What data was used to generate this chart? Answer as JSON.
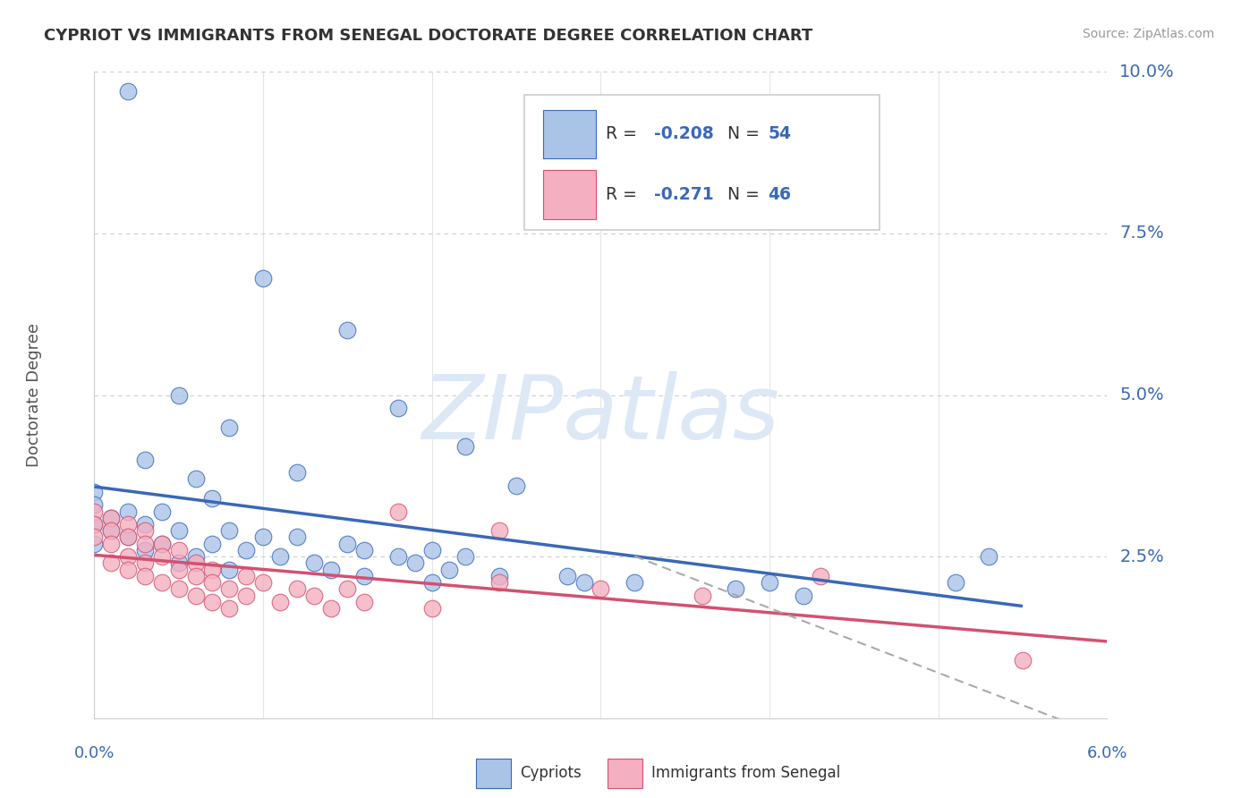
{
  "title": "CYPRIOT VS IMMIGRANTS FROM SENEGAL DOCTORATE DEGREE CORRELATION CHART",
  "source": "Source: ZipAtlas.com",
  "ylabel_label": "Doctorate Degree",
  "r_blue": -0.208,
  "n_blue": 54,
  "r_pink": -0.271,
  "n_pink": 46,
  "blue_color": "#aac4e8",
  "pink_color": "#f4afc0",
  "trend_blue_color": "#3a68b8",
  "trend_pink_color": "#d45070",
  "trend_dash_color": "#aaaaaa",
  "blue_scatter": [
    [
      0.002,
      0.097
    ],
    [
      0.01,
      0.068
    ],
    [
      0.015,
      0.06
    ],
    [
      0.005,
      0.05
    ],
    [
      0.018,
      0.048
    ],
    [
      0.008,
      0.045
    ],
    [
      0.022,
      0.042
    ],
    [
      0.003,
      0.04
    ],
    [
      0.012,
      0.038
    ],
    [
      0.006,
      0.037
    ],
    [
      0.025,
      0.036
    ],
    [
      0.0,
      0.035
    ],
    [
      0.007,
      0.034
    ],
    [
      0.0,
      0.033
    ],
    [
      0.004,
      0.032
    ],
    [
      0.002,
      0.032
    ],
    [
      0.001,
      0.031
    ],
    [
      0.0,
      0.03
    ],
    [
      0.003,
      0.03
    ],
    [
      0.001,
      0.029
    ],
    [
      0.005,
      0.029
    ],
    [
      0.008,
      0.029
    ],
    [
      0.002,
      0.028
    ],
    [
      0.01,
      0.028
    ],
    [
      0.012,
      0.028
    ],
    [
      0.0,
      0.027
    ],
    [
      0.004,
      0.027
    ],
    [
      0.007,
      0.027
    ],
    [
      0.015,
      0.027
    ],
    [
      0.003,
      0.026
    ],
    [
      0.009,
      0.026
    ],
    [
      0.016,
      0.026
    ],
    [
      0.02,
      0.026
    ],
    [
      0.006,
      0.025
    ],
    [
      0.011,
      0.025
    ],
    [
      0.018,
      0.025
    ],
    [
      0.022,
      0.025
    ],
    [
      0.005,
      0.024
    ],
    [
      0.013,
      0.024
    ],
    [
      0.019,
      0.024
    ],
    [
      0.008,
      0.023
    ],
    [
      0.014,
      0.023
    ],
    [
      0.021,
      0.023
    ],
    [
      0.016,
      0.022
    ],
    [
      0.024,
      0.022
    ],
    [
      0.028,
      0.022
    ],
    [
      0.02,
      0.021
    ],
    [
      0.029,
      0.021
    ],
    [
      0.032,
      0.021
    ],
    [
      0.038,
      0.02
    ],
    [
      0.04,
      0.021
    ],
    [
      0.051,
      0.021
    ],
    [
      0.042,
      0.019
    ],
    [
      0.053,
      0.025
    ]
  ],
  "pink_scatter": [
    [
      0.0,
      0.032
    ],
    [
      0.001,
      0.031
    ],
    [
      0.0,
      0.03
    ],
    [
      0.002,
      0.03
    ],
    [
      0.001,
      0.029
    ],
    [
      0.003,
      0.029
    ],
    [
      0.0,
      0.028
    ],
    [
      0.002,
      0.028
    ],
    [
      0.004,
      0.027
    ],
    [
      0.001,
      0.027
    ],
    [
      0.003,
      0.027
    ],
    [
      0.005,
      0.026
    ],
    [
      0.002,
      0.025
    ],
    [
      0.004,
      0.025
    ],
    [
      0.001,
      0.024
    ],
    [
      0.003,
      0.024
    ],
    [
      0.006,
      0.024
    ],
    [
      0.002,
      0.023
    ],
    [
      0.005,
      0.023
    ],
    [
      0.007,
      0.023
    ],
    [
      0.003,
      0.022
    ],
    [
      0.006,
      0.022
    ],
    [
      0.009,
      0.022
    ],
    [
      0.004,
      0.021
    ],
    [
      0.007,
      0.021
    ],
    [
      0.01,
      0.021
    ],
    [
      0.005,
      0.02
    ],
    [
      0.008,
      0.02
    ],
    [
      0.012,
      0.02
    ],
    [
      0.015,
      0.02
    ],
    [
      0.006,
      0.019
    ],
    [
      0.009,
      0.019
    ],
    [
      0.013,
      0.019
    ],
    [
      0.007,
      0.018
    ],
    [
      0.011,
      0.018
    ],
    [
      0.016,
      0.018
    ],
    [
      0.008,
      0.017
    ],
    [
      0.014,
      0.017
    ],
    [
      0.02,
      0.017
    ],
    [
      0.018,
      0.032
    ],
    [
      0.024,
      0.029
    ],
    [
      0.024,
      0.021
    ],
    [
      0.03,
      0.02
    ],
    [
      0.036,
      0.019
    ],
    [
      0.043,
      0.022
    ],
    [
      0.055,
      0.009
    ]
  ],
  "xmin": 0.0,
  "xmax": 0.06,
  "ymin": 0.0,
  "ymax": 0.1,
  "yticks": [
    0.025,
    0.05,
    0.075,
    0.1
  ],
  "ytick_labels": [
    "2.5%",
    "5.0%",
    "7.5%",
    "10.0%"
  ],
  "xtick_left": "0.0%",
  "xtick_right": "6.0%",
  "background_color": "#ffffff",
  "grid_color": "#cccccc",
  "watermark_text": "ZIPatlas",
  "watermark_color": "#dce8f5"
}
